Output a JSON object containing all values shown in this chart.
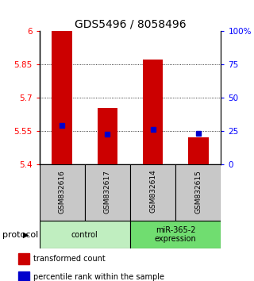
{
  "title": "GDS5496 / 8058496",
  "samples": [
    "GSM832616",
    "GSM832617",
    "GSM832614",
    "GSM832615"
  ],
  "red_values": [
    6.0,
    5.655,
    5.872,
    5.52
  ],
  "blue_values": [
    5.575,
    5.535,
    5.558,
    5.538
  ],
  "y_min": 5.4,
  "y_max": 6.0,
  "y_ticks_left": [
    5.4,
    5.55,
    5.7,
    5.85,
    6.0
  ],
  "y_ticks_right_pct": [
    0,
    25,
    50,
    75,
    100
  ],
  "groups": [
    {
      "label": "control",
      "start": 0,
      "end": 2,
      "color": "#c0eec0"
    },
    {
      "label": "miR-365-2\nexpression",
      "start": 2,
      "end": 4,
      "color": "#70dd70"
    }
  ],
  "bar_color": "#cc0000",
  "dot_color": "#0000cc",
  "bar_width": 0.45,
  "group_label": "protocol",
  "legend_red": "transformed count",
  "legend_blue": "percentile rank within the sample",
  "sample_box_color": "#c8c8c8",
  "title_fontsize": 10,
  "tick_fontsize": 7.5,
  "label_fontsize": 7
}
